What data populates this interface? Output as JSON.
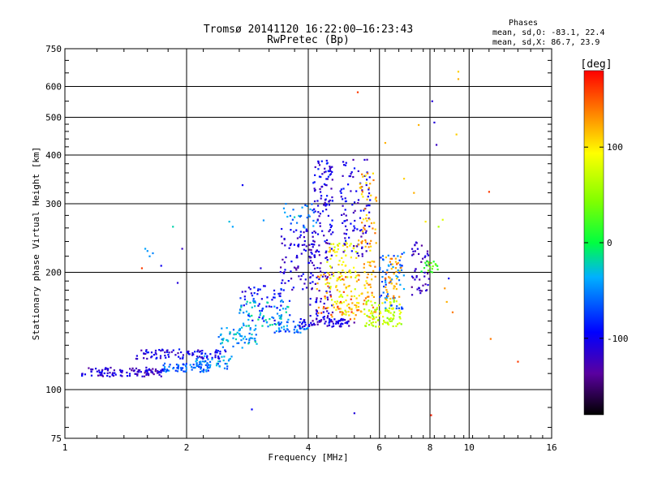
{
  "chart_data": {
    "type": "scatter",
    "title": "Tromsø 20141120 16:22:00–16:23:43",
    "subtitle": "RwPretec (Bp)",
    "xlabel": "Frequency [MHz]",
    "ylabel": "Stationary phase Virtual Height [km]",
    "x_scale": "log",
    "y_scale": "log",
    "xlim": [
      1,
      16
    ],
    "ylim": [
      75,
      750
    ],
    "x_ticks": [
      1,
      2,
      4,
      6,
      8,
      10,
      16
    ],
    "y_ticks": [
      75,
      100,
      200,
      300,
      400,
      500,
      600,
      750
    ],
    "grid": true,
    "info": {
      "heading": "Phases",
      "line1": "mean, sd,O: -83.1, 22.4",
      "line2": "mean, sd,X: 86.7, 23.9"
    },
    "colorbar": {
      "label": "[deg]",
      "range": [
        -180,
        180
      ],
      "ticks": [
        100,
        0,
        -100
      ],
      "tick_labels": [
        "100",
        "0",
        "-100"
      ]
    },
    "clusters": [
      {
        "x": [
          1.1,
          1.75
        ],
        "y": [
          108,
          114
        ],
        "phase": -115,
        "n": 110
      },
      {
        "x": [
          1.75,
          2.3
        ],
        "y": [
          111,
          117
        ],
        "phase": -60,
        "n": 70
      },
      {
        "x": [
          1.5,
          2.5
        ],
        "y": [
          120,
          127
        ],
        "phase": -105,
        "n": 90
      },
      {
        "x": [
          2.1,
          2.6
        ],
        "y": [
          113,
          122
        ],
        "phase": -50,
        "n": 40
      },
      {
        "x": [
          2.4,
          3.0
        ],
        "y": [
          128,
          145
        ],
        "phase": -40,
        "n": 60
      },
      {
        "x": [
          2.7,
          3.6
        ],
        "y": [
          145,
          170
        ],
        "phase": -35,
        "n": 70
      },
      {
        "x": [
          2.7,
          3.6
        ],
        "y": [
          150,
          185
        ],
        "phase": -95,
        "n": 50
      },
      {
        "x": [
          3.3,
          4.0
        ],
        "y": [
          140,
          150
        ],
        "phase": -60,
        "n": 40
      },
      {
        "x": [
          3.4,
          4.2
        ],
        "y": [
          180,
          260
        ],
        "phase": -110,
        "n": 90
      },
      {
        "x": [
          3.6,
          4.2
        ],
        "y": [
          260,
          300
        ],
        "phase": -50,
        "n": 25
      },
      {
        "x": [
          3.8,
          5.2
        ],
        "y": [
          145,
          152
        ],
        "phase": -110,
        "n": 70
      },
      {
        "x": [
          4.0,
          4.6
        ],
        "y": [
          150,
          240
        ],
        "phase": -115,
        "n": 80
      },
      {
        "x": [
          4.1,
          4.6
        ],
        "y": [
          240,
          390
        ],
        "phase": -105,
        "n": 90
      },
      {
        "x": [
          4.4,
          5.3
        ],
        "y": [
          155,
          240
        ],
        "phase": 95,
        "n": 120
      },
      {
        "x": [
          4.2,
          5.4
        ],
        "y": [
          150,
          200
        ],
        "phase": 140,
        "n": 50
      },
      {
        "x": [
          4.8,
          5.7
        ],
        "y": [
          220,
          390
        ],
        "phase": -110,
        "n": 100
      },
      {
        "x": [
          5.3,
          5.9
        ],
        "y": [
          150,
          360
        ],
        "phase": 120,
        "n": 100
      },
      {
        "x": [
          5.5,
          6.8
        ],
        "y": [
          145,
          170
        ],
        "phase": 70,
        "n": 90
      },
      {
        "x": [
          6.0,
          6.9
        ],
        "y": [
          160,
          230
        ],
        "phase": -60,
        "n": 60
      },
      {
        "x": [
          6.2,
          6.8
        ],
        "y": [
          170,
          220
        ],
        "phase": 130,
        "n": 40
      },
      {
        "x": [
          7.2,
          8.0
        ],
        "y": [
          175,
          240
        ],
        "phase": -120,
        "n": 50
      },
      {
        "x": [
          7.6,
          8.4
        ],
        "y": [
          200,
          215
        ],
        "phase": 20,
        "n": 20
      }
    ],
    "points": [
      {
        "x": 1.6,
        "y": 227,
        "phase": -45
      },
      {
        "x": 1.62,
        "y": 220,
        "phase": -45
      },
      {
        "x": 1.58,
        "y": 230,
        "phase": -40
      },
      {
        "x": 1.65,
        "y": 224,
        "phase": -50
      },
      {
        "x": 1.55,
        "y": 205,
        "phase": 160
      },
      {
        "x": 1.73,
        "y": 208,
        "phase": -100
      },
      {
        "x": 1.95,
        "y": 230,
        "phase": -120
      },
      {
        "x": 1.85,
        "y": 262,
        "phase": -20
      },
      {
        "x": 1.9,
        "y": 188,
        "phase": -110
      },
      {
        "x": 2.6,
        "y": 262,
        "phase": -40
      },
      {
        "x": 2.55,
        "y": 270,
        "phase": -30
      },
      {
        "x": 2.75,
        "y": 335,
        "phase": -100
      },
      {
        "x": 3.1,
        "y": 272,
        "phase": -45
      },
      {
        "x": 3.05,
        "y": 205,
        "phase": -110
      },
      {
        "x": 3.5,
        "y": 285,
        "phase": -40
      },
      {
        "x": 3.48,
        "y": 292,
        "phase": -45
      },
      {
        "x": 3.55,
        "y": 278,
        "phase": -35
      },
      {
        "x": 3.52,
        "y": 300,
        "phase": -50
      },
      {
        "x": 2.9,
        "y": 89,
        "phase": -95
      },
      {
        "x": 5.2,
        "y": 87,
        "phase": -110
      },
      {
        "x": 5.3,
        "y": 580,
        "phase": 160
      },
      {
        "x": 8.2,
        "y": 485,
        "phase": -110
      },
      {
        "x": 8.1,
        "y": 550,
        "phase": -110
      },
      {
        "x": 8.3,
        "y": 425,
        "phase": -120
      },
      {
        "x": 9.4,
        "y": 655,
        "phase": 110
      },
      {
        "x": 9.4,
        "y": 627,
        "phase": 120
      },
      {
        "x": 9.3,
        "y": 452,
        "phase": 110
      },
      {
        "x": 8.05,
        "y": 86,
        "phase": 170
      },
      {
        "x": 11.2,
        "y": 322,
        "phase": 160
      },
      {
        "x": 11.3,
        "y": 135,
        "phase": 140
      },
      {
        "x": 13.2,
        "y": 118,
        "phase": 160
      },
      {
        "x": 7.5,
        "y": 478,
        "phase": 120
      },
      {
        "x": 6.2,
        "y": 430,
        "phase": 120
      },
      {
        "x": 6.9,
        "y": 348,
        "phase": 110
      },
      {
        "x": 8.6,
        "y": 273,
        "phase": 80
      },
      {
        "x": 8.4,
        "y": 262,
        "phase": 60
      },
      {
        "x": 9.1,
        "y": 158,
        "phase": 140
      },
      {
        "x": 8.8,
        "y": 168,
        "phase": 120
      },
      {
        "x": 8.9,
        "y": 193,
        "phase": -100
      },
      {
        "x": 7.3,
        "y": 320,
        "phase": 120
      },
      {
        "x": 7.8,
        "y": 270,
        "phase": 100
      },
      {
        "x": 8.7,
        "y": 182,
        "phase": 130
      }
    ]
  }
}
